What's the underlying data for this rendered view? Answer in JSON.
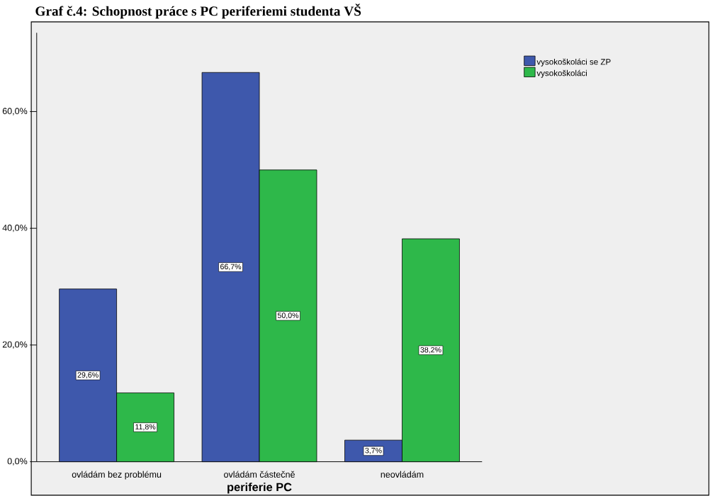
{
  "chart_data": {
    "type": "bar",
    "title": "Graf č.4: Schopnost práce s PC periferiemi studenta VŠ",
    "xlabel": "periferie PC",
    "categories": [
      "ovládám bez problému",
      "ovládám částečně",
      "neovládám"
    ],
    "series": [
      {
        "name": "vysokoškoláci se ZP",
        "color": "#3e58ac",
        "values": [
          29.6,
          66.7,
          3.7
        ],
        "value_labels": [
          "29,6%",
          "66,7%",
          "3,7%"
        ]
      },
      {
        "name": "vysokoškoláci",
        "color": "#2eb84a",
        "values": [
          11.8,
          50.0,
          38.2
        ],
        "value_labels": [
          "11,8%",
          "50,0%",
          "38,2%"
        ]
      }
    ],
    "ylim": [
      0,
      73.5
    ],
    "yticks": [
      {
        "value": 0,
        "label": "0,0%"
      },
      {
        "value": 20,
        "label": "20,0%"
      },
      {
        "value": 40,
        "label": "40,0%"
      },
      {
        "value": 60,
        "label": "60,0%"
      }
    ],
    "legend": "top right",
    "grid": false
  }
}
